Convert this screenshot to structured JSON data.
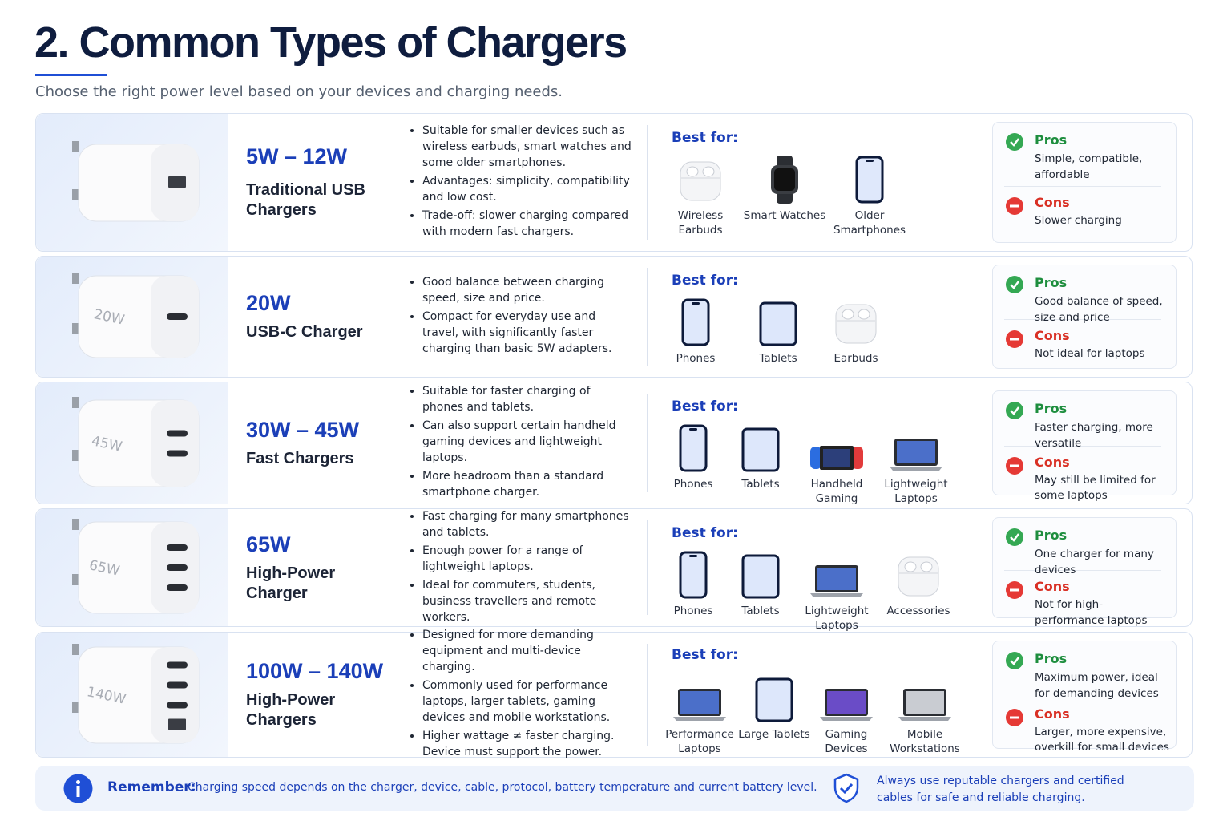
{
  "header": {
    "title": "2. Common Types of Chargers",
    "subtitle": "Choose the right power level based on your devices and charging needs."
  },
  "rows": [
    {
      "power": "5W – 12W",
      "name": "Traditional USB Chargers",
      "points": [
        "Suitable for smaller devices such as wireless earbuds, smart watches and some older smartphones.",
        "Advantages: simplicity, compatibility and low cost.",
        "Trade-off: slower charging compared with modern fast chargers."
      ],
      "best_for": "Best for:",
      "devices": [
        "Wireless Earbuds",
        "Smart Watches",
        "Older Smartphones"
      ],
      "pros_label": "Pros",
      "pros": "Simple, compatible, affordable",
      "cons_label": "Cons",
      "cons": "Slower charging"
    },
    {
      "charger_text": "20W",
      "power": "20W",
      "name": "USB-C Charger",
      "points": [
        "Good balance between charging speed, size and price.",
        "Compact for everyday use and travel, with significantly faster charging than basic 5W adapters."
      ],
      "best_for": "Best for:",
      "devices": [
        "Phones",
        "Tablets",
        "Earbuds"
      ],
      "pros_label": "Pros",
      "pros": "Good balance of speed, size and price",
      "cons_label": "Cons",
      "cons": "Not ideal for laptops"
    },
    {
      "charger_text": "45W",
      "power": "30W – 45W",
      "name": "Fast Chargers",
      "points": [
        "Suitable for faster charging of phones and tablets.",
        "Can also support certain handheld gaming devices and lightweight laptops.",
        "More headroom than a standard smartphone charger."
      ],
      "best_for": "Best for:",
      "devices": [
        "Phones",
        "Tablets",
        "Handheld Gaming",
        "Lightweight Laptops"
      ],
      "pros_label": "Pros",
      "pros": "Faster charging, more versatile",
      "cons_label": "Cons",
      "cons": "May still be limited for some laptops"
    },
    {
      "charger_text": "65W",
      "power": "65W",
      "name": "High-Power Charger",
      "points": [
        "Fast charging for many smartphones and tablets.",
        "Enough power for a range of lightweight laptops.",
        "Ideal for commuters, students, business travellers and remote workers."
      ],
      "best_for": "Best for:",
      "devices": [
        "Phones",
        "Tablets",
        "Lightweight Laptops",
        "Accessories"
      ],
      "pros_label": "Pros",
      "pros": "One charger for many devices",
      "cons_label": "Cons",
      "cons": "Not for high-performance laptops"
    },
    {
      "charger_text": "140W",
      "power": "100W – 140W",
      "name": "High-Power Chargers",
      "points": [
        "Designed for more demanding equipment and multi-device charging.",
        "Commonly used for performance laptops, larger tablets, gaming devices and mobile workstations.",
        "Higher wattage ≠ faster charging. Device must support the power."
      ],
      "best_for": "Best for:",
      "devices": [
        "Performance Laptops",
        "Large Tablets",
        "Gaming Devices",
        "Mobile Workstations"
      ],
      "pros_label": "Pros",
      "pros": "Maximum power, ideal for demanding devices",
      "cons_label": "Cons",
      "cons": "Larger, more expensive, overkill for small devices"
    }
  ],
  "footer": {
    "remember_label": "Remember:",
    "remember_text": "Charging speed depends on the charger, device, cable, protocol, battery temperature and current battery level.",
    "safety_text": "Always use reputable chargers and certified cables for safe and reliable charging."
  }
}
